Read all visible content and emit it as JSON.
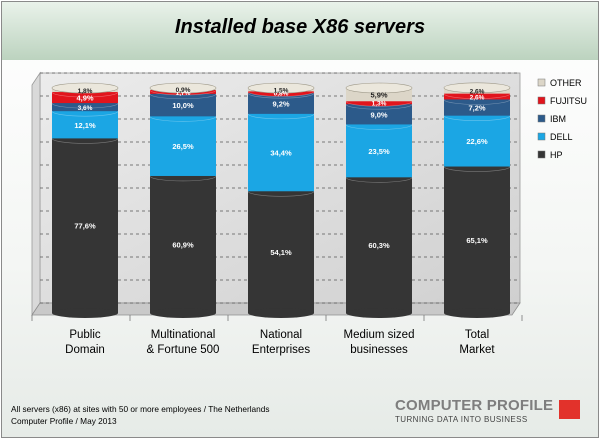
{
  "chart_data": {
    "type": "bar",
    "stacked": true,
    "percent_stacked": true,
    "title": "Installed base X86 servers",
    "categories": [
      "Public Domain",
      "Multinational & Fortune 500",
      "National Enterprises",
      "Medium sized businesses",
      "Total Market"
    ],
    "category_lines": [
      [
        "Public",
        "Domain"
      ],
      [
        "Multinational",
        "& Fortune 500"
      ],
      [
        "National",
        "Enterprises"
      ],
      [
        "Medium sized",
        "businesses"
      ],
      [
        "Total",
        "Market"
      ]
    ],
    "series": [
      {
        "name": "HP",
        "values": [
          77.6,
          60.9,
          54.1,
          60.3,
          65.1
        ],
        "labels": [
          "77,6%",
          "60,9%",
          "54,1%",
          "60,3%",
          "65,1%"
        ],
        "color": "#353535"
      },
      {
        "name": "DELL",
        "values": [
          12.1,
          26.5,
          34.4,
          23.5,
          22.6
        ],
        "labels": [
          "12,1%",
          "26,5%",
          "34,4%",
          "23,5%",
          "22,6%"
        ],
        "color": "#1ba6e4"
      },
      {
        "name": "IBM",
        "values": [
          3.6,
          10.0,
          9.2,
          9.0,
          7.2
        ],
        "labels": [
          "3,6%",
          "10,0%",
          "9,2%",
          "9,0%",
          "7,2%"
        ],
        "color": "#2c5a8a"
      },
      {
        "name": "FUJITSU",
        "values": [
          4.9,
          1.7,
          0.8,
          1.3,
          2.6
        ],
        "labels": [
          "4,9%",
          "1,7%",
          "0,8%",
          "1,3%",
          "2,6%"
        ],
        "color": "#e1141c"
      },
      {
        "name": "OTHER",
        "values": [
          1.8,
          0.9,
          1.5,
          5.9,
          2.6
        ],
        "labels": [
          "1,8%",
          "0,9%",
          "1,5%",
          "5,9%",
          "2,6%"
        ],
        "color": "#dcd6c8"
      }
    ],
    "legend_order": [
      "OTHER",
      "FUJITSU",
      "IBM",
      "DELL",
      "HP"
    ],
    "legend_position": "right",
    "ylim": [
      0,
      100
    ],
    "grid": true,
    "gridline_count": 11
  },
  "footnote": {
    "line1": "All servers (x86) at sites with  50 or more employees / The Netherlands",
    "line2": "Computer Profile / May 2013"
  },
  "brand": {
    "name": "COMPUTER PROFILE",
    "tagline": "TURNING DATA INTO BUSINESS"
  },
  "colors": {
    "title_band": "#bcd3bf",
    "accent": "#e2322b"
  }
}
